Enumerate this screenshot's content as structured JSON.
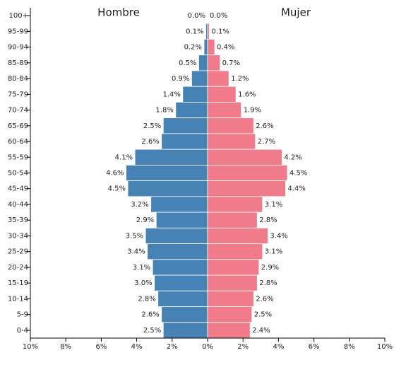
{
  "chart_data": {
    "type": "pyramid",
    "categories": [
      "100+",
      "95-99",
      "90-94",
      "85-89",
      "80-84",
      "75-79",
      "70-74",
      "65-69",
      "60-64",
      "55-59",
      "50-54",
      "45-49",
      "40-44",
      "35-39",
      "30-34",
      "25-29",
      "20-24",
      "15-19",
      "10-14",
      "5-9",
      "0-4"
    ],
    "series": [
      {
        "name": "Hombre",
        "color": "#4682b4",
        "side": "left",
        "values": [
          0.0,
          0.1,
          0.2,
          0.5,
          0.9,
          1.4,
          1.8,
          2.5,
          2.6,
          4.1,
          4.6,
          4.5,
          3.2,
          2.9,
          3.5,
          3.4,
          3.1,
          3.0,
          2.8,
          2.6,
          2.5
        ],
        "value_labels": [
          "0.0%",
          "0.1%",
          "0.2%",
          "0.5%",
          "0.9%",
          "1.4%",
          "1.8%",
          "2.5%",
          "2.6%",
          "4.1%",
          "4.6%",
          "4.5%",
          "3.2%",
          "2.9%",
          "3.5%",
          "3.4%",
          "3.1%",
          "3.0%",
          "2.8%",
          "2.6%",
          "2.5%"
        ]
      },
      {
        "name": "Mujer",
        "color": "#f07b8a",
        "side": "right",
        "values": [
          0.0,
          0.1,
          0.4,
          0.7,
          1.2,
          1.6,
          1.9,
          2.6,
          2.7,
          4.2,
          4.5,
          4.4,
          3.1,
          2.8,
          3.4,
          3.1,
          2.9,
          2.8,
          2.6,
          2.5,
          2.4
        ],
        "value_labels": [
          "0.0%",
          "0.1%",
          "0.4%",
          "0.7%",
          "1.2%",
          "1.6%",
          "1.9%",
          "2.6%",
          "2.7%",
          "4.2%",
          "4.5%",
          "4.4%",
          "3.1%",
          "2.8%",
          "3.4%",
          "3.1%",
          "2.9%",
          "2.8%",
          "2.6%",
          "2.5%",
          "2.4%"
        ]
      }
    ],
    "xlim": [
      -10,
      10
    ],
    "xticks": [
      {
        "value": -10,
        "label": "10%"
      },
      {
        "value": -8,
        "label": "8%"
      },
      {
        "value": -6,
        "label": "6%"
      },
      {
        "value": -4,
        "label": "4%"
      },
      {
        "value": -2,
        "label": "2%"
      },
      {
        "value": 0,
        "label": "0%"
      },
      {
        "value": 2,
        "label": "2%"
      },
      {
        "value": 4,
        "label": "4%"
      },
      {
        "value": 6,
        "label": "6%"
      },
      {
        "value": 8,
        "label": "8%"
      },
      {
        "value": 10,
        "label": "10%"
      }
    ]
  }
}
